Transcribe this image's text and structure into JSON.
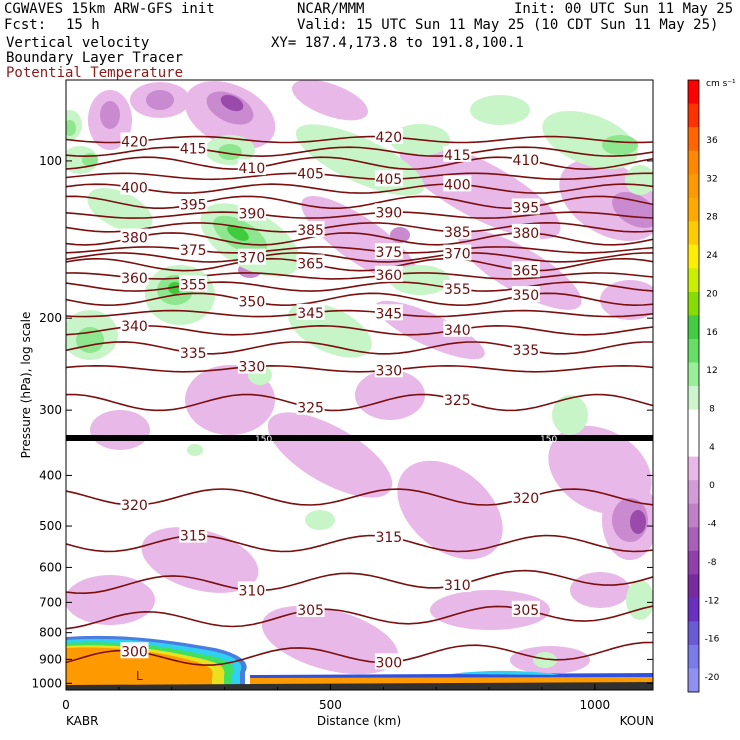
{
  "header": {
    "model": "CGWAVES 15km ARW-GFS init",
    "fcst_label": "Fcst:",
    "fcst_value": "15 h",
    "field1": "Vertical velocity",
    "field2": "Boundary Layer Tracer",
    "field3": "Potential Temperature",
    "org": "NCAR/MMM",
    "init": "Init: 00 UTC Sun 11 May 25",
    "valid": "Valid: 15 UTC Sun 11 May 25 (10 CDT Sun 11 May 25)",
    "xy": "XY= 187.4,173.8 to 191.8,100.1"
  },
  "colors": {
    "isentrope": "#7a0f0f",
    "tracer_orange": "#ff9900",
    "positive": [
      "#c8f5c8",
      "#8ee68e",
      "#3ecc3e"
    ],
    "negative": [
      "#e8b8e8",
      "#c98ad0",
      "#9a4aab"
    ]
  },
  "chart_data": {
    "type": "contour",
    "xlabel": "Distance (km)",
    "ylabel": "Pressure (hPa), log scale",
    "x_ticks": [
      "0",
      "500",
      "1000"
    ],
    "x_range": [
      0,
      1110
    ],
    "y_ticks": [
      "100",
      "200",
      "300",
      "400",
      "500",
      "600",
      "700",
      "800",
      "900",
      "1000"
    ],
    "left_station": "KABR",
    "right_station": "KOUN",
    "colorbar": {
      "units": "cm s⁻¹",
      "labels": [
        "36",
        "32",
        "28",
        "24",
        "20",
        "16",
        "12",
        "8",
        "4",
        "0",
        "-4",
        "-8",
        "-12",
        "-16",
        "-20"
      ]
    },
    "isentropes": [
      {
        "theta": "420",
        "p": 91
      },
      {
        "theta": "415",
        "p": 96
      },
      {
        "theta": "410",
        "p": 101
      },
      {
        "theta": "405",
        "p": 107
      },
      {
        "theta": "400",
        "p": 113
      },
      {
        "theta": "395",
        "p": 120
      },
      {
        "theta": "390",
        "p": 127
      },
      {
        "theta": "385",
        "p": 134
      },
      {
        "theta": "380",
        "p": 141
      },
      {
        "theta": "375",
        "p": 148
      },
      {
        "theta": "370",
        "p": 153
      },
      {
        "theta": "365",
        "p": 158
      },
      {
        "theta": "360",
        "p": 166
      },
      {
        "theta": "355",
        "p": 174
      },
      {
        "theta": "350",
        "p": 184
      },
      {
        "theta": "345",
        "p": 196
      },
      {
        "theta": "340",
        "p": 211
      },
      {
        "theta": "335",
        "p": 228
      },
      {
        "theta": "330",
        "p": 250
      },
      {
        "theta": "325",
        "p": 290
      },
      {
        "theta": "320",
        "p": 440
      },
      {
        "theta": "315",
        "p": 540
      },
      {
        "theta": "310",
        "p": 650
      },
      {
        "theta": "305",
        "p": 760
      },
      {
        "theta": "300",
        "p": 900
      }
    ],
    "markers": [
      {
        "text": "150"
      },
      {
        "text": "150"
      },
      {
        "text": "L"
      }
    ]
  }
}
